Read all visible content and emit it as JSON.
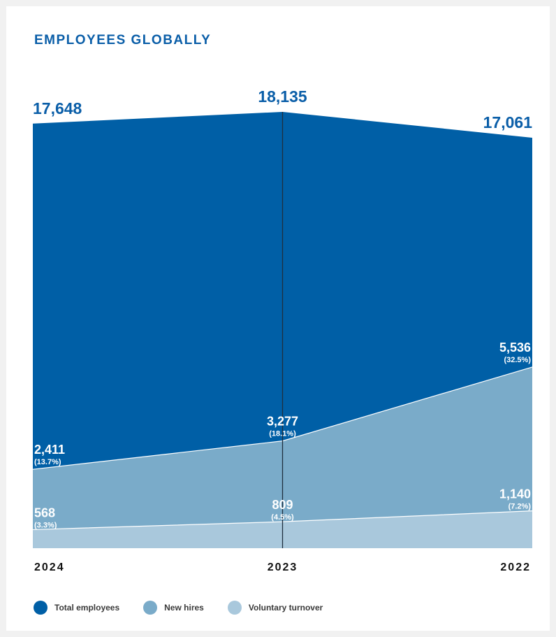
{
  "chart_data": {
    "type": "area",
    "title": "EMPLOYEES GLOBALLY",
    "categories": [
      "2024",
      "2023",
      "2022"
    ],
    "series": [
      {
        "name": "Total employees",
        "color": "#005fa6",
        "values": [
          17648,
          18135,
          17061
        ],
        "value_labels": [
          "17,648",
          "18,135",
          "17,061"
        ],
        "pct_labels": [
          "",
          "",
          ""
        ]
      },
      {
        "name": "New hires",
        "color": "#7aabc9",
        "values": [
          2411,
          3277,
          5536
        ],
        "value_labels": [
          "2,411",
          "3,277",
          "5,536"
        ],
        "pct_labels": [
          "(13.7%)",
          "(18.1%)",
          "(32.5%)"
        ]
      },
      {
        "name": "Voluntary turnover",
        "color": "#a9c8dc",
        "values": [
          568,
          809,
          1140
        ],
        "value_labels": [
          "568",
          "809",
          "1,140"
        ],
        "pct_labels": [
          "(3.3%)",
          "(4.5%)",
          "(7.2%)"
        ]
      }
    ],
    "ylim": [
      0,
      18135
    ],
    "grid": false,
    "legend_position": "bottom-left"
  }
}
